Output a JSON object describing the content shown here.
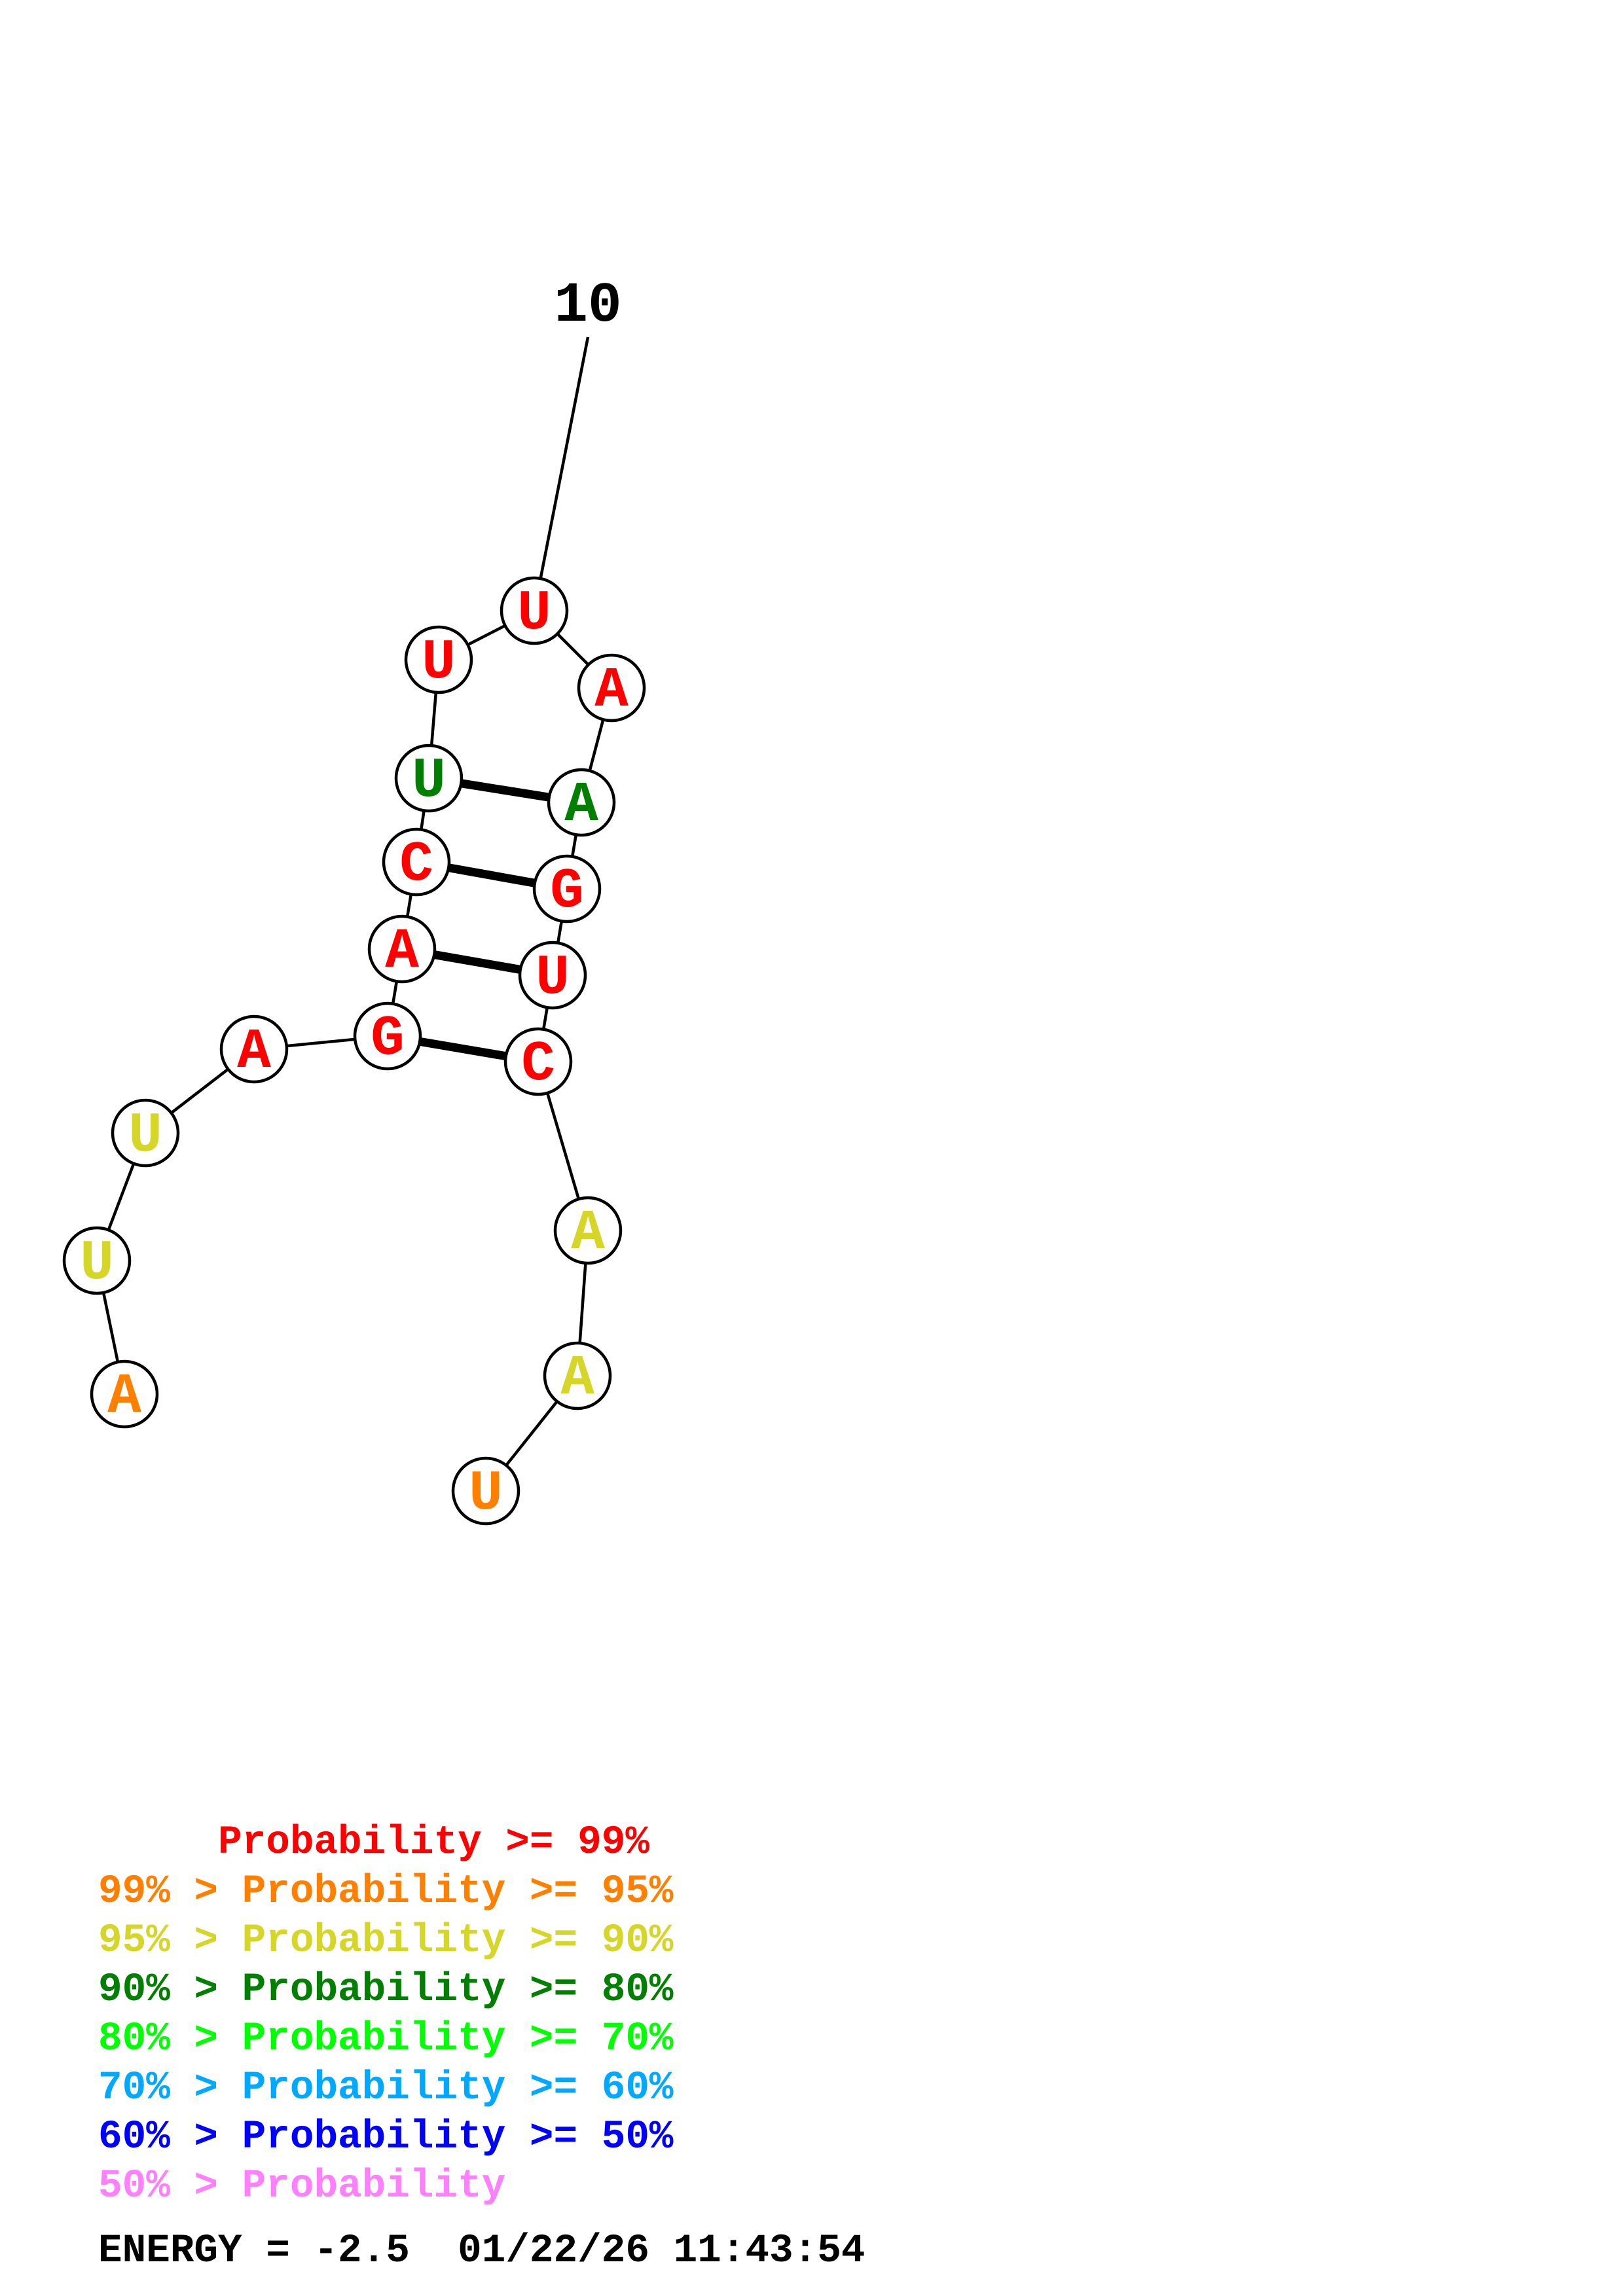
{
  "structure": {
    "index_label": "10",
    "energy": "ENERGY = -2.5",
    "timestamp": "01/22/26 11:43:54",
    "bases": [
      {
        "letter": "A",
        "tier": 1
      },
      {
        "letter": "U",
        "tier": 2
      },
      {
        "letter": "U",
        "tier": 2
      },
      {
        "letter": "A",
        "tier": 0
      },
      {
        "letter": "G",
        "tier": 0
      },
      {
        "letter": "A",
        "tier": 0
      },
      {
        "letter": "C",
        "tier": 0
      },
      {
        "letter": "U",
        "tier": 3
      },
      {
        "letter": "U",
        "tier": 0
      },
      {
        "letter": "U",
        "tier": 0
      },
      {
        "letter": "A",
        "tier": 0
      },
      {
        "letter": "A",
        "tier": 3
      },
      {
        "letter": "G",
        "tier": 0
      },
      {
        "letter": "U",
        "tier": 0
      },
      {
        "letter": "C",
        "tier": 0
      },
      {
        "letter": "A",
        "tier": 2
      },
      {
        "letter": "A",
        "tier": 2
      },
      {
        "letter": "U",
        "tier": 1
      }
    ],
    "pairs": [
      [
        5,
        15
      ],
      [
        6,
        14
      ],
      [
        7,
        13
      ],
      [
        8,
        12
      ]
    ],
    "labeled_base": 10
  },
  "legend": [
    {
      "text": "     Probability >= 99%",
      "tier": 0
    },
    {
      "text": "99% > Probability >= 95%",
      "tier": 1
    },
    {
      "text": "95% > Probability >= 90%",
      "tier": 2
    },
    {
      "text": "90% > Probability >= 80%",
      "tier": 3
    },
    {
      "text": "80% > Probability >= 70%",
      "tier": 4
    },
    {
      "text": "70% > Probability >= 60%",
      "tier": 5
    },
    {
      "text": "60% > Probability >= 50%",
      "tier": 6
    },
    {
      "text": "50% > Probability",
      "tier": 7
    }
  ],
  "tier_colors": [
    "#ff0000",
    "#ff8000",
    "#d6d629",
    "#007f00",
    "#00ff00",
    "#00a8ff",
    "#0000ff",
    "#ff80ff"
  ]
}
